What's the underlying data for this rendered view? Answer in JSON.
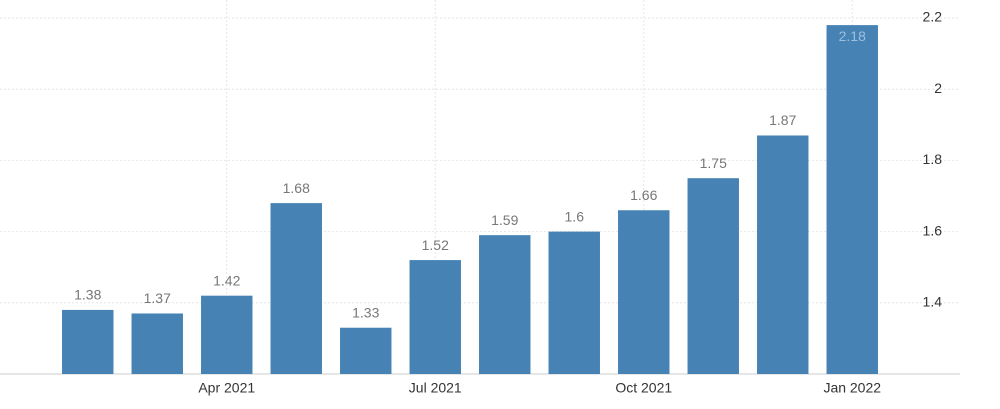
{
  "chart_data": {
    "type": "bar",
    "categories": [
      null,
      null,
      "Apr 2021",
      null,
      null,
      "Jul 2021",
      null,
      null,
      "Oct 2021",
      null,
      null,
      "Jan 2022"
    ],
    "values": [
      1.38,
      1.37,
      1.42,
      1.68,
      1.33,
      1.52,
      1.59,
      1.6,
      1.66,
      1.75,
      1.87,
      2.18
    ],
    "color": "#4682b4",
    "ylim": [
      1.2,
      2.2
    ],
    "yticks": [
      1.4,
      1.6,
      1.8,
      2,
      2.2
    ],
    "grid": true
  }
}
